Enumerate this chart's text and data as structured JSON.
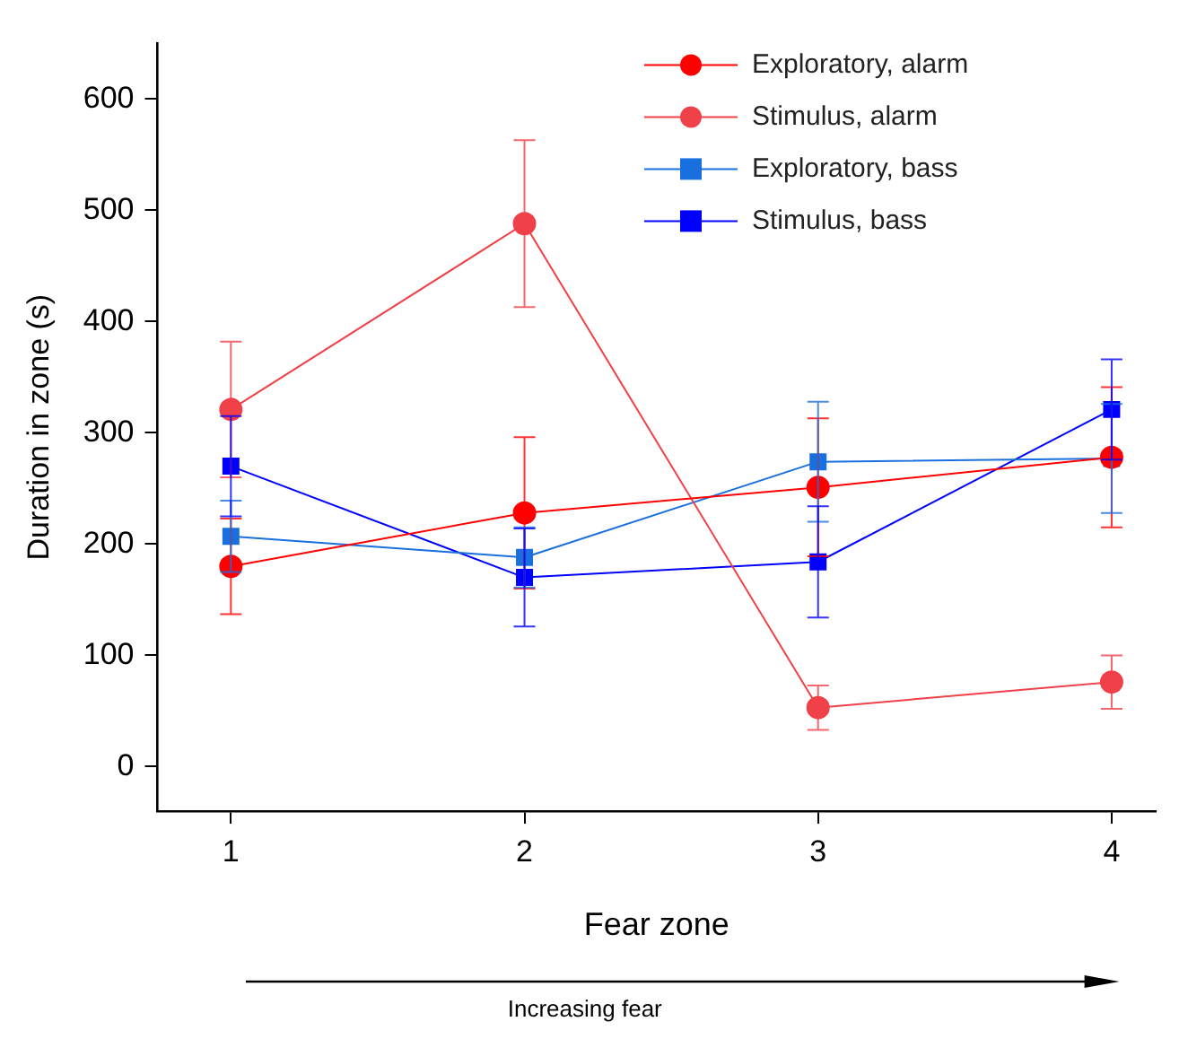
{
  "chart_data": {
    "type": "line",
    "xlabel": "Fear zone",
    "ylabel": "Duration in zone (s)",
    "x": [
      1,
      2,
      3,
      4
    ],
    "xlim": [
      0.75,
      4.15
    ],
    "xticks": [
      1,
      2,
      3,
      4
    ],
    "ylim": [
      -40,
      650
    ],
    "yticks": [
      0,
      100,
      200,
      300,
      400,
      500,
      600
    ],
    "grid": false,
    "legend": "top right",
    "annotations": [
      "Increasing fear"
    ],
    "series": [
      {
        "name": "Exploratory, alarm",
        "color": "#ff0000",
        "marker": "circle",
        "values": [
          180,
          228,
          251,
          278
        ],
        "errors": [
          43,
          68,
          62,
          63
        ]
      },
      {
        "name": "Stimulus, alarm",
        "color": "#f04048",
        "marker": "circle",
        "values": [
          321,
          488,
          53,
          76
        ],
        "errors": [
          61,
          75,
          20,
          24
        ]
      },
      {
        "name": "Exploratory, bass",
        "color": "#1a6fdf",
        "marker": "square",
        "values": [
          207,
          188,
          274,
          277
        ],
        "errors": [
          32,
          27,
          54,
          49
        ]
      },
      {
        "name": "Stimulus, bass",
        "color": "#0000ff",
        "marker": "square",
        "values": [
          270,
          170,
          184,
          321
        ],
        "errors": [
          45,
          44,
          50,
          45
        ]
      }
    ]
  }
}
